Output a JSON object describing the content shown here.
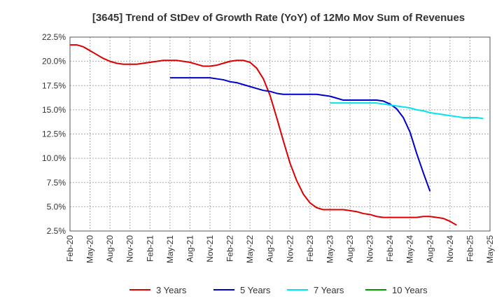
{
  "chart_data": {
    "type": "line",
    "title": "[3645]  Trend of StDev of Growth Rate (YoY) of 12Mo Mov Sum of Revenues",
    "xlabel": "",
    "ylabel": "",
    "ylim": [
      2.5,
      22.5
    ],
    "yticks": [
      2.5,
      5.0,
      7.5,
      10.0,
      12.5,
      15.0,
      17.5,
      20.0,
      22.5
    ],
    "ytick_labels": [
      "2.5%",
      "5.0%",
      "7.5%",
      "10.0%",
      "12.5%",
      "15.0%",
      "17.5%",
      "20.0%",
      "22.5%"
    ],
    "x_start": "2020-02",
    "x_tick_step_months": 3,
    "x_tick_labels": [
      "Feb-20",
      "May-20",
      "Aug-20",
      "Nov-20",
      "Feb-21",
      "May-21",
      "Aug-21",
      "Nov-21",
      "Feb-22",
      "May-22",
      "Aug-22",
      "Nov-22",
      "Feb-23",
      "May-23",
      "Aug-23",
      "Nov-23",
      "Feb-24",
      "May-24",
      "Aug-24",
      "Nov-24",
      "Feb-25",
      "May-25"
    ],
    "grid": true,
    "legend_position": "bottom",
    "series": [
      {
        "name": "3 Years",
        "color": "#dd0000",
        "start_month_index": 0,
        "values": [
          21.7,
          21.7,
          21.5,
          21.1,
          20.7,
          20.3,
          20.0,
          19.8,
          19.7,
          19.7,
          19.7,
          19.8,
          19.9,
          20.0,
          20.1,
          20.1,
          20.1,
          20.0,
          19.9,
          19.7,
          19.5,
          19.5,
          19.6,
          19.8,
          20.0,
          20.1,
          20.1,
          19.9,
          19.3,
          18.2,
          16.5,
          14.2,
          11.8,
          9.5,
          7.7,
          6.3,
          5.4,
          4.9,
          4.7,
          4.7,
          4.7,
          4.7,
          4.6,
          4.5,
          4.3,
          4.2,
          4.0,
          3.9,
          3.9,
          3.9,
          3.9,
          3.9,
          3.9,
          4.0,
          4.0,
          3.9,
          3.8,
          3.5,
          3.1
        ]
      },
      {
        "name": "5 Years",
        "color": "#0000cc",
        "start_month_index": 15,
        "values": [
          18.3,
          18.3,
          18.3,
          18.3,
          18.3,
          18.3,
          18.3,
          18.2,
          18.1,
          17.9,
          17.8,
          17.6,
          17.4,
          17.2,
          17.0,
          16.9,
          16.7,
          16.6,
          16.6,
          16.6,
          16.6,
          16.6,
          16.6,
          16.5,
          16.4,
          16.2,
          16.0,
          16.0,
          16.0,
          16.0,
          16.0,
          16.0,
          15.9,
          15.6,
          15.1,
          14.2,
          12.7,
          10.5,
          8.5,
          6.6
        ]
      },
      {
        "name": "7 Years",
        "color": "#00e5ee",
        "start_month_index": 39,
        "values": [
          15.7,
          15.7,
          15.7,
          15.7,
          15.7,
          15.7,
          15.7,
          15.7,
          15.6,
          15.5,
          15.4,
          15.3,
          15.2,
          15.0,
          14.9,
          14.7,
          14.6,
          14.5,
          14.4,
          14.3,
          14.2,
          14.2,
          14.2,
          14.1
        ]
      },
      {
        "name": "10 Years",
        "color": "#009900",
        "start_month_index": 0,
        "values": []
      }
    ]
  }
}
